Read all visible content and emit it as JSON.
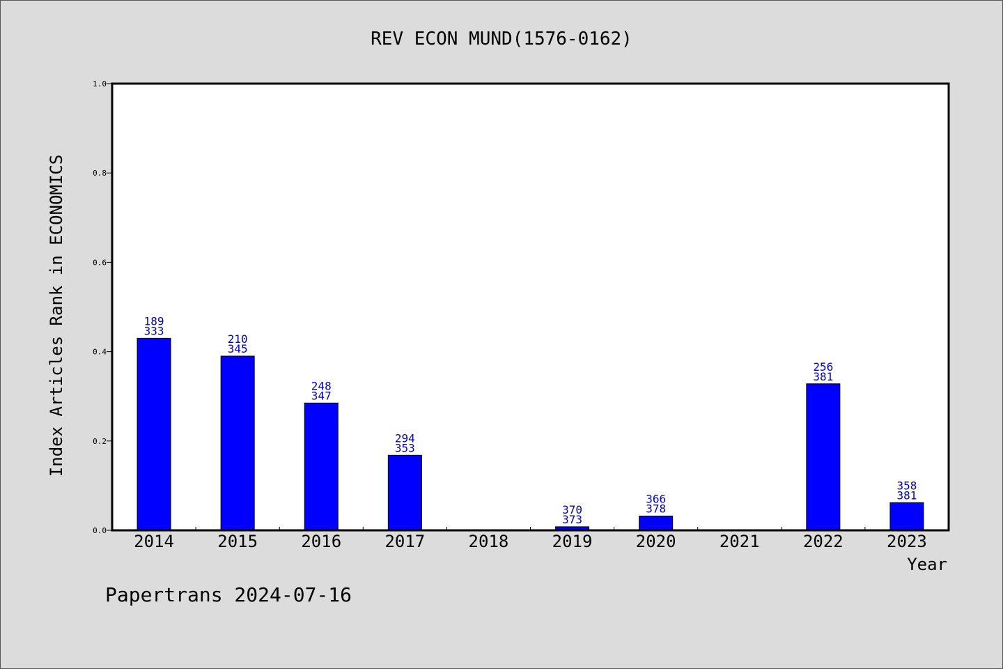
{
  "chart_data": {
    "type": "bar",
    "title": "REV ECON MUND(1576-0162)",
    "xlabel": "Year",
    "ylabel": "Index Articles Rank in ECONOMICS",
    "ylim": [
      0,
      1.0
    ],
    "yticks": [
      "0.0",
      "0.2",
      "0.4",
      "0.6",
      "0.8",
      "1.0"
    ],
    "grid": false,
    "bar_color": "#0000ff",
    "label_color": "#0000cc",
    "categories": [
      "2014",
      "2015",
      "2016",
      "2017",
      "2018",
      "2019",
      "2020",
      "2021",
      "2022",
      "2023"
    ],
    "values": [
      0.43,
      0.39,
      0.285,
      0.168,
      null,
      0.008,
      0.032,
      null,
      0.328,
      0.062
    ],
    "labels_top": [
      "189",
      "210",
      "248",
      "294",
      "",
      "370",
      "366",
      "",
      "256",
      "358"
    ],
    "labels_bottom": [
      "333",
      "345",
      "347",
      "353",
      "",
      "373",
      "378",
      "",
      "381",
      "381"
    ]
  },
  "footer": "Papertrans 2024-07-16"
}
